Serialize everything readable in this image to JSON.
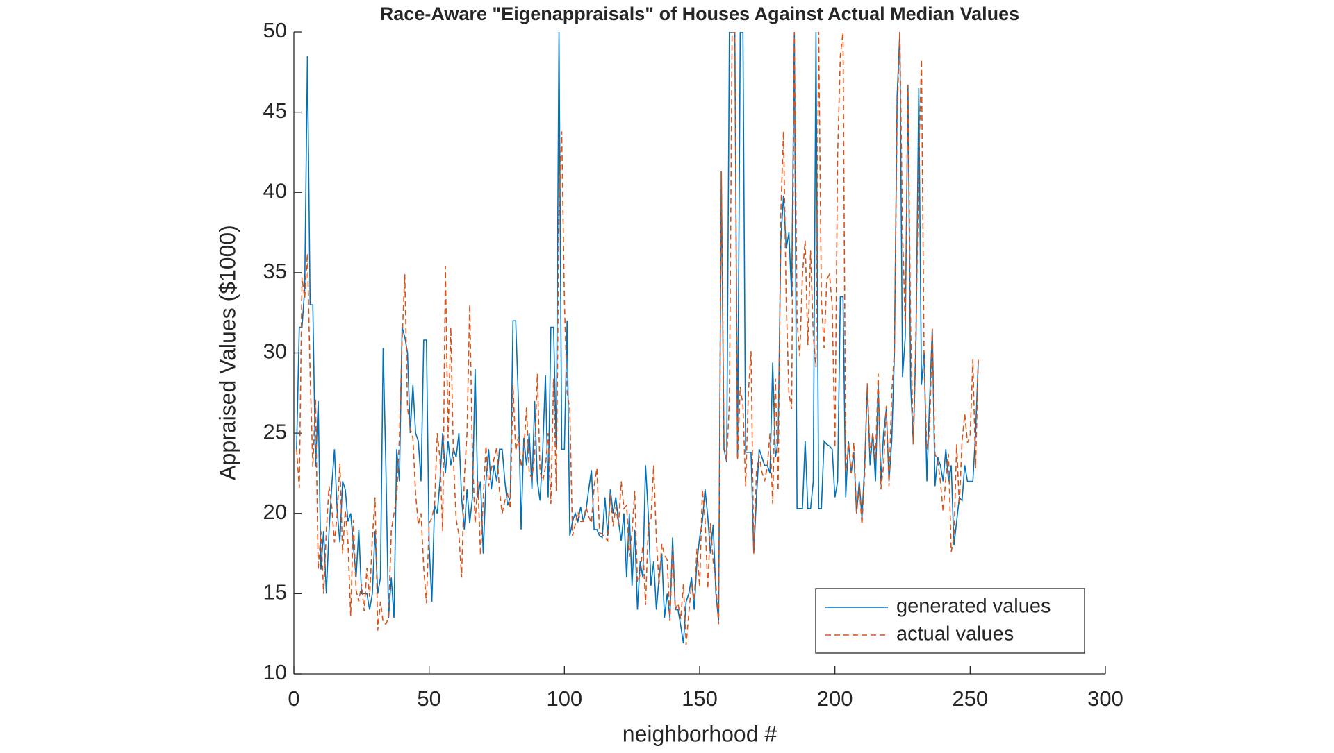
{
  "chart_data": {
    "type": "line",
    "title": "Race-Aware \"Eigenappraisals\" of Houses Against Actual Median Values",
    "xlabel": "neighborhood #",
    "ylabel": "Appraised Values ($1000)",
    "x": [
      1,
      2,
      3,
      4,
      5,
      6,
      7,
      8,
      9,
      10,
      11,
      12,
      13,
      14,
      15,
      16,
      17,
      18,
      19,
      20,
      21,
      22,
      23,
      24,
      25,
      26,
      27,
      28,
      29,
      30,
      31,
      32,
      33,
      34,
      35,
      36,
      37,
      38,
      39,
      40,
      41,
      42,
      43,
      44,
      45,
      46,
      47,
      48,
      49,
      50,
      51,
      52,
      53,
      54,
      55,
      56,
      57,
      58,
      59,
      60,
      61,
      62,
      63,
      64,
      65,
      66,
      67,
      68,
      69,
      70,
      71,
      72,
      73,
      74,
      75,
      76,
      77,
      78,
      79,
      80,
      81,
      82,
      83,
      84,
      85,
      86,
      87,
      88,
      89,
      90,
      91,
      92,
      93,
      94,
      95,
      96,
      97,
      98,
      99,
      100,
      101,
      102,
      103,
      104,
      105,
      106,
      107,
      108,
      109,
      110,
      111,
      112,
      113,
      114,
      115,
      116,
      117,
      118,
      119,
      120,
      121,
      122,
      123,
      124,
      125,
      126,
      127,
      128,
      129,
      130,
      131,
      132,
      133,
      134,
      135,
      136,
      137,
      138,
      139,
      140,
      141,
      142,
      143,
      144,
      145,
      146,
      147,
      148,
      149,
      150,
      151,
      152,
      153,
      154,
      155,
      156,
      157,
      158,
      159,
      160,
      161,
      162,
      163,
      164,
      165,
      166,
      167,
      168,
      169,
      170,
      171,
      172,
      173,
      174,
      175,
      176,
      177,
      178,
      179,
      180,
      181,
      182,
      183,
      184,
      185,
      186,
      187,
      188,
      189,
      190,
      191,
      192,
      193,
      194,
      195,
      196,
      197,
      198,
      199,
      200,
      201,
      202,
      203,
      204,
      205,
      206,
      207,
      208,
      209,
      210,
      211,
      212,
      213,
      214,
      215,
      216,
      217,
      218,
      219,
      220,
      221,
      222,
      223,
      224,
      225,
      226,
      227,
      228,
      229,
      230,
      231,
      232,
      233,
      234,
      235,
      236,
      237,
      238,
      239,
      240,
      241,
      242,
      243,
      244,
      245,
      246,
      247,
      248,
      249,
      250,
      251,
      252,
      253
    ],
    "series": [
      {
        "name": "generated values",
        "color": "#0072BD",
        "dash": false,
        "values": [
          24,
          31.6,
          31.6,
          34,
          48.5,
          33,
          33,
          22.9,
          27,
          16.5,
          18.9,
          15,
          18.9,
          21.7,
          24,
          20.2,
          18.2,
          22,
          21.5,
          19.5,
          20,
          18,
          16,
          19,
          15,
          15,
          15,
          14,
          15,
          18.9,
          15,
          16,
          30.3,
          23,
          13.5,
          16,
          13.5,
          24,
          22,
          31.6,
          31,
          30,
          25,
          28,
          25,
          24.5,
          22,
          30.8,
          30.8,
          18,
          14.5,
          20.5,
          20,
          22,
          25,
          22.5,
          24.5,
          23,
          24,
          23.5,
          25,
          21,
          19,
          21.5,
          19.4,
          21,
          29,
          21,
          22,
          17.5,
          22,
          24,
          21.5,
          23,
          22,
          24,
          24,
          22,
          20.5,
          21,
          32,
          32,
          27,
          19,
          24.7,
          23,
          25,
          21.5,
          27,
          22,
          20.8,
          24,
          28.6,
          21,
          31.6,
          31.6,
          24,
          50,
          24,
          24,
          32,
          18.6,
          19.5,
          20,
          19.5,
          20.4,
          19.5,
          20.2,
          21.5,
          22.7,
          19,
          19,
          18.6,
          18.5,
          21,
          18.6,
          21.5,
          20,
          21,
          19.5,
          18.3,
          20,
          16,
          20,
          15.5,
          19,
          14,
          17,
          16,
          23,
          20,
          15.5,
          17,
          14,
          16,
          17.5,
          13.5,
          15,
          13.5,
          18.5,
          14,
          14,
          13,
          11.9,
          14.5,
          15,
          16,
          14,
          17,
          18.5,
          19.5,
          21.5,
          19.8,
          17.5,
          19.3,
          15,
          13.3,
          41.3,
          24,
          23.2,
          50,
          50,
          50,
          23.5,
          50,
          50,
          23.8,
          23.8,
          23.8,
          17.5,
          21,
          24,
          23.5,
          23,
          23,
          22.5,
          29.4,
          23.5,
          24.5,
          37,
          39.8,
          36.5,
          37.5,
          33.5,
          50,
          20.3,
          20.3,
          20.3,
          24.5,
          20.3,
          20.3,
          22,
          50,
          20.3,
          20.3,
          24.5,
          24.3,
          24.2,
          24,
          21,
          22,
          33.5,
          33.5,
          21,
          24.5,
          22.5,
          23.8,
          20,
          22,
          19.7,
          23,
          28,
          23,
          25,
          22,
          28,
          22,
          25,
          26.5,
          22,
          24.5,
          30,
          46,
          50,
          28.5,
          31,
          46.7,
          28,
          24.3,
          31,
          46.5,
          28,
          30,
          22,
          27,
          31.5,
          21.7,
          23.5,
          23,
          22,
          24,
          22,
          23,
          18,
          19.5,
          21,
          20.8,
          23,
          22,
          22,
          22,
          25,
          29.5
        ]
      },
      {
        "name": "actual values",
        "color": "#D95319",
        "dash": true,
        "values": [
          24,
          21.6,
          34.7,
          33.4,
          36.2,
          28.7,
          22.9,
          27.1,
          16.5,
          18.9,
          15,
          18.9,
          21.7,
          20.4,
          18.2,
          19.9,
          23.1,
          17.5,
          20.2,
          18.2,
          13.6,
          19.6,
          15.2,
          14.5,
          15.6,
          13.9,
          16.6,
          14.8,
          18.4,
          21,
          12.7,
          14.5,
          13.2,
          13.1,
          13.5,
          18.9,
          20,
          21,
          24.7,
          30.8,
          34.9,
          26.6,
          25.3,
          24.7,
          21.2,
          19.3,
          20,
          16.6,
          14.4,
          19.4,
          19.7,
          20.5,
          25,
          23.4,
          18.9,
          35.4,
          24.7,
          31.6,
          23.3,
          19.6,
          18.7,
          16,
          22.2,
          25,
          33,
          23.5,
          19.4,
          22,
          17.4,
          20.9,
          24.2,
          21.7,
          22.8,
          23.4,
          24.1,
          21.4,
          20,
          20.8,
          21.2,
          20.3,
          28,
          23.9,
          24.8,
          22.9,
          23.9,
          26.6,
          22.5,
          22.2,
          23.6,
          28.7,
          22.6,
          22,
          22.9,
          25,
          20.6,
          28.4,
          21.4,
          38.7,
          43.8,
          33.2,
          27.5,
          26.5,
          18.6,
          19.3,
          20.1,
          19.5,
          19.5,
          20.4,
          19.8,
          19.4,
          21.7,
          22.8,
          18.8,
          18.7,
          18.5,
          18.3,
          21.2,
          19.2,
          20.4,
          19.3,
          22,
          20.3,
          20.5,
          17.3,
          18.8,
          21.4,
          15.7,
          16.2,
          18,
          14.3,
          19.2,
          19.6,
          23,
          18.4,
          15.6,
          18.1,
          17.4,
          17.1,
          13.3,
          17.8,
          14,
          14.4,
          13.4,
          15.6,
          11.8,
          13.8,
          15.6,
          14.6,
          17.8,
          15.4,
          21.5,
          19.6,
          15.3,
          19.4,
          17,
          15.6,
          13.1,
          41.3,
          24.3,
          23.3,
          27,
          50,
          50,
          23.3,
          27.9,
          26.7,
          21.7,
          27.5,
          30.1,
          17.5,
          22.6,
          23.6,
          22.6,
          22,
          22.9,
          25,
          20.6,
          28.4,
          21.4,
          38.7,
          43.8,
          33.2,
          27.5,
          26.5,
          50,
          32,
          29.8,
          34.9,
          37,
          30.5,
          36.4,
          31.1,
          29.1,
          50,
          33.3,
          30.3,
          34.6,
          34.9,
          32.9,
          24.1,
          42.3,
          48.5,
          50,
          22.6,
          24.4,
          22.5,
          24.4,
          20,
          21.7,
          19.3,
          22.4,
          28.1,
          23.7,
          25,
          23.3,
          28.7,
          21.5,
          23,
          26.7,
          21.7,
          27.5,
          30.1,
          44.8,
          50,
          37.6,
          31.6,
          46.7,
          31.5,
          24.3,
          31.7,
          41.7,
          48.3,
          29,
          24,
          25.1,
          31.5,
          23.7,
          23.3,
          22,
          20.1,
          22.2,
          23.7,
          17.6,
          18.5,
          24.3,
          20.5,
          24.5,
          26.2,
          24.4,
          24.8,
          29.6,
          22.8,
          29.6
        ]
      }
    ],
    "xlim": [
      0,
      300
    ],
    "xticks": [
      0,
      50,
      100,
      150,
      200,
      250,
      300
    ],
    "ylim": [
      10,
      50
    ],
    "yticks": [
      10,
      15,
      20,
      25,
      30,
      35,
      40,
      45,
      50
    ],
    "grid": false,
    "legend": "southeast"
  }
}
